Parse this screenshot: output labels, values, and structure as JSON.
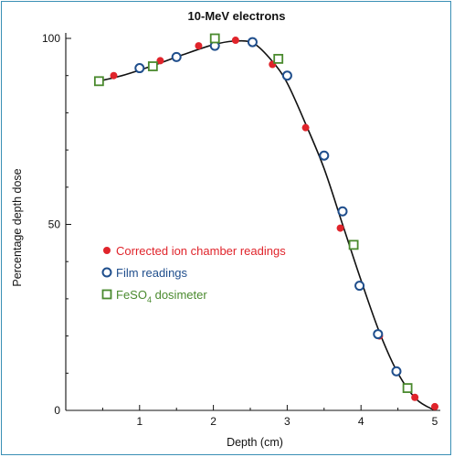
{
  "chart_data": {
    "type": "scatter",
    "title": "10-MeV electrons",
    "xlabel": "Depth (cm)",
    "ylabel": "Percentage depth dose",
    "xlim": [
      0,
      5.1
    ],
    "ylim": [
      0,
      100
    ],
    "x_ticks": [
      {
        "value": 1,
        "label": "1"
      },
      {
        "value": 2,
        "label": "2"
      },
      {
        "value": 3,
        "label": "3"
      },
      {
        "value": 4,
        "label": "4"
      },
      {
        "value": 5,
        "label": "5"
      }
    ],
    "y_ticks": [
      {
        "value": 0,
        "label": "0"
      },
      {
        "value": 50,
        "label": "50"
      },
      {
        "value": 100,
        "label": "100"
      }
    ],
    "legend_position": "left-center",
    "series": [
      {
        "name": "Corrected ion chamber readings",
        "marker": "filled-circle",
        "color": "#e0242b",
        "points": [
          [
            0.65,
            90
          ],
          [
            1.28,
            94
          ],
          [
            1.8,
            98
          ],
          [
            2.3,
            99.5
          ],
          [
            2.8,
            93
          ],
          [
            3.25,
            76
          ],
          [
            3.72,
            49
          ],
          [
            4.25,
            20
          ],
          [
            4.73,
            3.5
          ],
          [
            5.0,
            1
          ]
        ]
      },
      {
        "name": "Film readings",
        "marker": "open-circle",
        "color": "#1f4e8c",
        "points": [
          [
            1.0,
            92
          ],
          [
            1.5,
            95
          ],
          [
            2.02,
            98
          ],
          [
            2.53,
            99
          ],
          [
            3.0,
            90
          ],
          [
            3.5,
            68.5
          ],
          [
            3.75,
            53.5
          ],
          [
            3.98,
            33.5
          ],
          [
            4.23,
            20.5
          ],
          [
            4.48,
            10.5
          ]
        ]
      },
      {
        "name_main": "FeSO",
        "name_sub": "4",
        "name_tail": " dosimeter",
        "marker": "open-square",
        "color": "#4a8a2e",
        "points": [
          [
            0.45,
            88.5
          ],
          [
            1.18,
            92.5
          ],
          [
            2.02,
            100
          ],
          [
            2.88,
            94.5
          ],
          [
            3.9,
            44.5
          ],
          [
            4.63,
            6
          ]
        ]
      }
    ],
    "fit_curve": {
      "color": "#111111",
      "points": [
        [
          0.45,
          88.5
        ],
        [
          0.8,
          90.2
        ],
        [
          1.2,
          92.8
        ],
        [
          1.6,
          95.7
        ],
        [
          2.0,
          98.3
        ],
        [
          2.3,
          99.3
        ],
        [
          2.55,
          98.6
        ],
        [
          2.8,
          93.8
        ],
        [
          3.0,
          88.0
        ],
        [
          3.25,
          77.0
        ],
        [
          3.5,
          65.0
        ],
        [
          3.75,
          50.0
        ],
        [
          4.0,
          35.0
        ],
        [
          4.25,
          21.0
        ],
        [
          4.5,
          10.0
        ],
        [
          4.75,
          3.0
        ],
        [
          5.0,
          0
        ]
      ]
    }
  }
}
